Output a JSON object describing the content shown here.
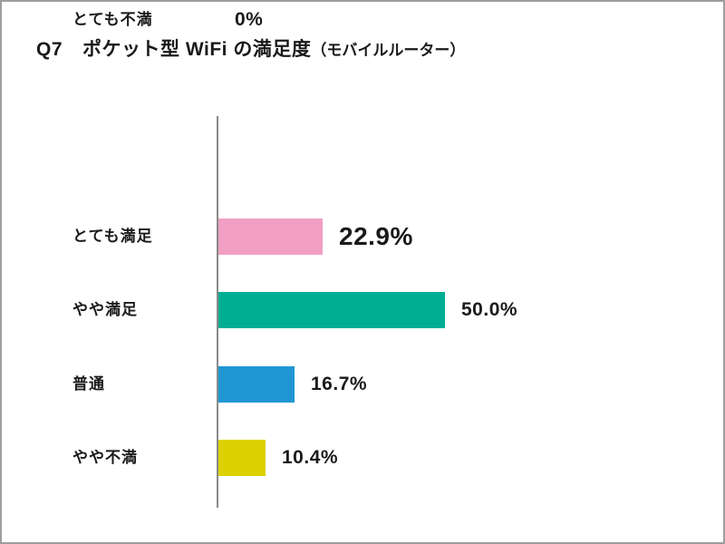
{
  "title": {
    "q": "Q7",
    "main": "ポケット型 WiFi の満足度",
    "sub": "（モバイルルーター）"
  },
  "chart_data": {
    "type": "bar",
    "orientation": "horizontal",
    "title": "Q7 ポケット型 WiFi の満足度（モバイルルーター）",
    "categories": [
      "とても満足",
      "やや満足",
      "普通",
      "やや不満",
      "とても不満"
    ],
    "values": [
      22.9,
      50.0,
      16.7,
      10.4,
      0
    ],
    "value_labels": [
      "22.9%",
      "50.0%",
      "16.7%",
      "10.4%",
      "0%"
    ],
    "bar_colors": [
      "#f19fc3",
      "#00ae94",
      "#2096d3",
      "#dcd100",
      null
    ],
    "emphasized_index": 1,
    "xlim": [
      0,
      100
    ],
    "axis_color": "#8a8a8a",
    "grid": false,
    "legend": false
  }
}
